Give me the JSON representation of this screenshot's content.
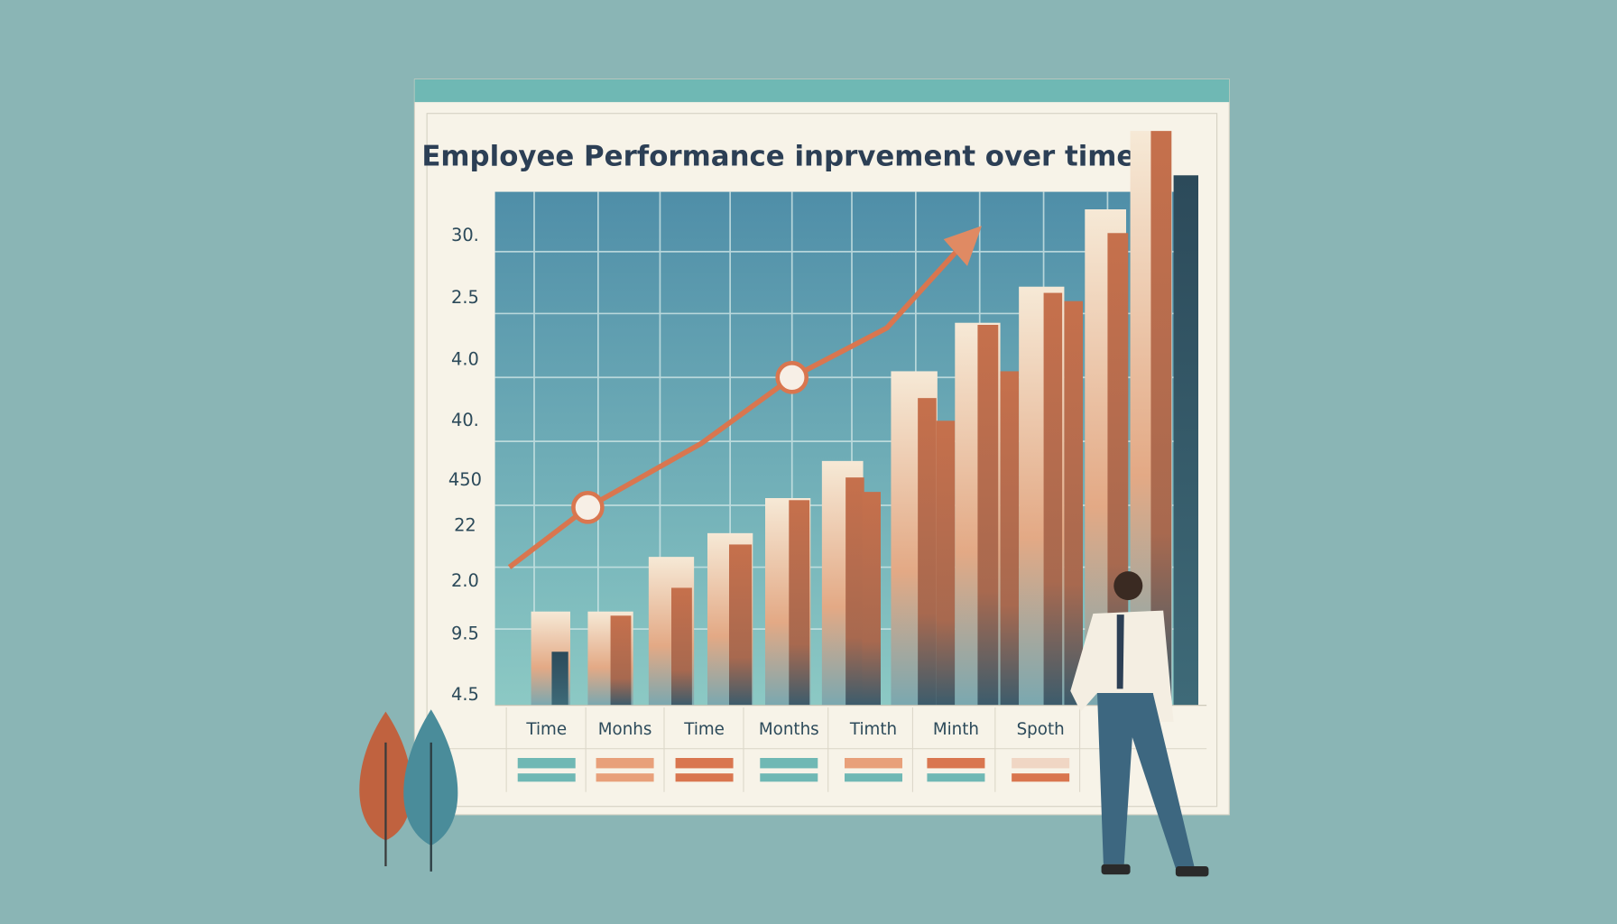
{
  "panel": {
    "title": "Employee Performance inprvement over time",
    "y_labels": [
      "30.",
      "2.5",
      "4.0",
      "40.",
      "450",
      "22",
      "2.0",
      "9.5",
      "4.5"
    ],
    "x_labels": [
      "Time",
      "Monhs",
      "Time",
      "Months",
      "Timth",
      "Minth",
      "Spoth"
    ]
  }
}
